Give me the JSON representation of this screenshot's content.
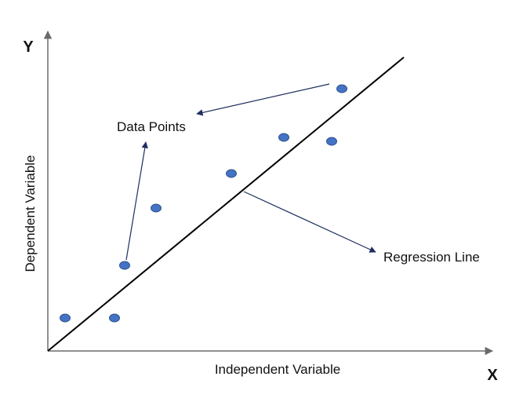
{
  "axes": {
    "y_letter": "Y",
    "x_letter": "X",
    "y_title": "Dependent Variable",
    "x_title": "Independent Variable"
  },
  "annotations": {
    "data_points_label": "Data Points",
    "regression_label": "Regression Line"
  },
  "colors": {
    "point_fill": "#4472C4",
    "point_stroke": "#2F528F",
    "line": "#000000",
    "arrow": "#1F2F5F",
    "axis": "#6b6b6b"
  },
  "points_count": 8
}
